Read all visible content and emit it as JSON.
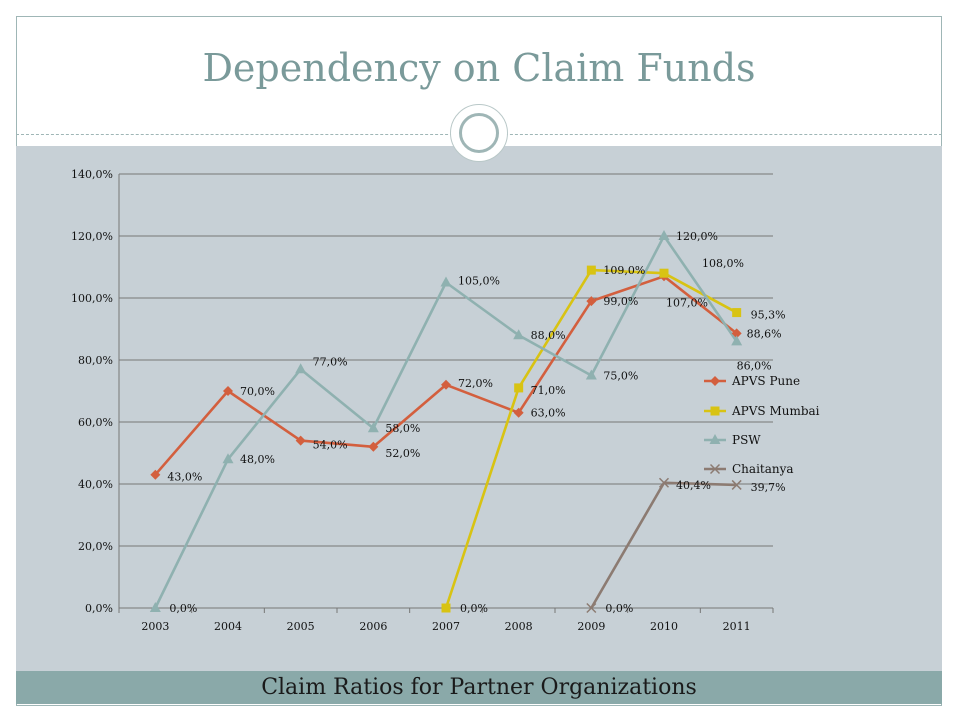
{
  "slide": {
    "title": "Dependency on Claim Funds",
    "caption": "Claim Ratios for Partner Organizations"
  },
  "chart_data": {
    "type": "line",
    "title": "",
    "xlabel": "",
    "ylabel": "",
    "categories": [
      "2003",
      "2004",
      "2005",
      "2006",
      "2007",
      "2008",
      "2009",
      "2010",
      "2011"
    ],
    "ylim": [
      0,
      140
    ],
    "yticks": [
      "0,0%",
      "20,0%",
      "40,0%",
      "60,0%",
      "80,0%",
      "100,0%",
      "120,0%",
      "140,0%"
    ],
    "grid": true,
    "legend_position": "right",
    "series": [
      {
        "name": "APVS Pune",
        "color": "#d35f3e",
        "marker": "diamond",
        "values": [
          43,
          70,
          54,
          52,
          72,
          63,
          99,
          107,
          88.6
        ],
        "labels": [
          "43,0%",
          "70,0%",
          "54,0%",
          "52,0%",
          "72,0%",
          "63,0%",
          "99,0%",
          "107,0%",
          "88,6%"
        ]
      },
      {
        "name": "APVS Mumbai",
        "color": "#d8c313",
        "marker": "square",
        "values": [
          null,
          null,
          null,
          null,
          0,
          71,
          109,
          108,
          95.3
        ],
        "labels": [
          "",
          "",
          "",
          "",
          "0,0%",
          "71,0%",
          "109,0%",
          "108,0%",
          "95,3%"
        ]
      },
      {
        "name": "PSW",
        "color": "#8fb1b0",
        "marker": "triangle",
        "values": [
          0,
          48,
          77,
          58,
          105,
          88,
          75,
          120,
          86
        ],
        "labels": [
          "0,0%",
          "48,0%",
          "77,0%",
          "58,0%",
          "105,0%",
          "88,0%",
          "75,0%",
          "120,0%",
          "86,0%"
        ]
      },
      {
        "name": "Chaitanya",
        "color": "#8c7b72",
        "marker": "x",
        "values": [
          null,
          null,
          null,
          null,
          null,
          null,
          0,
          40.4,
          39.7
        ],
        "labels": [
          "",
          "",
          "",
          "",
          "",
          "",
          "0,0%",
          "40,4%",
          "39,7%"
        ]
      }
    ]
  }
}
